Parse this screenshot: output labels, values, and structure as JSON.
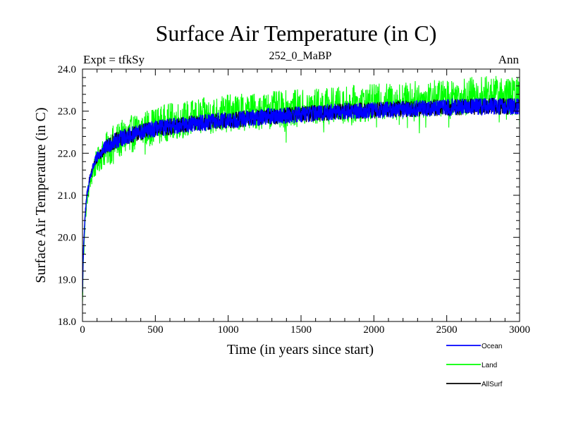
{
  "chart_data": {
    "type": "line",
    "title": "Surface Air Temperature (in C)",
    "subtitle": "252_0_MaBP",
    "experiment_label": "Expt = tfkSy",
    "season_label": "Ann",
    "xlabel": "Time (in years since start)",
    "ylabel": "Surface Air Temperature (in C)",
    "xlim": [
      0,
      3000
    ],
    "ylim": [
      18.0,
      24.0
    ],
    "x_ticks": [
      0,
      500,
      1000,
      1500,
      2000,
      2500,
      3000
    ],
    "x_tick_labels": [
      "0",
      "500",
      "1000",
      "1500",
      "2000",
      "2500",
      "3000"
    ],
    "y_ticks": [
      18.0,
      19.0,
      20.0,
      21.0,
      22.0,
      23.0,
      24.0
    ],
    "y_tick_labels": [
      "18.0",
      "19.0",
      "20.0",
      "21.0",
      "22.0",
      "23.0",
      "24.0"
    ],
    "grid": false,
    "legend_position": "bottom-right",
    "series": [
      {
        "name": "Land",
        "color": "#00ff00",
        "x": [
          0,
          5,
          10,
          20,
          30,
          50,
          75,
          100,
          150,
          200,
          300,
          400,
          500,
          600,
          700,
          800,
          900,
          1000,
          1200,
          1400,
          1600,
          1800,
          2000,
          2200,
          2400,
          2600,
          2800,
          3000
        ],
        "mean": [
          18.4,
          19.3,
          19.9,
          20.5,
          20.9,
          21.3,
          21.6,
          21.8,
          22.05,
          22.2,
          22.4,
          22.55,
          22.65,
          22.75,
          22.8,
          22.85,
          22.9,
          22.95,
          23.0,
          23.05,
          23.1,
          23.15,
          23.2,
          23.25,
          23.3,
          23.35,
          23.4,
          23.35
        ],
        "noise_amplitude": 0.45
      },
      {
        "name": "Ocean",
        "color": "#0000ff",
        "x": [
          0,
          5,
          10,
          20,
          30,
          50,
          75,
          100,
          150,
          200,
          300,
          400,
          500,
          600,
          700,
          800,
          900,
          1000,
          1200,
          1400,
          1600,
          1800,
          2000,
          2200,
          2400,
          2600,
          2800,
          3000
        ],
        "mean": [
          18.7,
          19.5,
          20.0,
          20.6,
          21.0,
          21.4,
          21.7,
          21.9,
          22.1,
          22.25,
          22.4,
          22.5,
          22.58,
          22.63,
          22.68,
          22.72,
          22.75,
          22.78,
          22.85,
          22.9,
          22.95,
          23.0,
          23.02,
          23.05,
          23.08,
          23.1,
          23.12,
          23.1
        ],
        "noise_amplitude": 0.2
      },
      {
        "name": "AllSurf",
        "color": "#000000",
        "x": [
          0,
          5,
          10,
          20,
          30,
          50,
          75,
          100,
          150,
          200,
          300,
          400,
          500,
          600,
          700,
          800,
          900,
          1000,
          1200,
          1400,
          1600,
          1800,
          2000,
          2200,
          2400,
          2600,
          2800,
          3000
        ],
        "mean": [
          18.7,
          19.5,
          20.0,
          20.6,
          21.0,
          21.4,
          21.7,
          21.9,
          22.1,
          22.25,
          22.4,
          22.5,
          22.58,
          22.63,
          22.68,
          22.72,
          22.75,
          22.78,
          22.85,
          22.9,
          22.95,
          23.0,
          23.02,
          23.05,
          23.08,
          23.1,
          23.12,
          23.1
        ],
        "noise_amplitude": 0.2
      }
    ],
    "legend": [
      {
        "label": "Ocean",
        "color": "#0000ff"
      },
      {
        "label": "Land",
        "color": "#00ff00"
      },
      {
        "label": "AllSurf",
        "color": "#000000"
      }
    ]
  }
}
